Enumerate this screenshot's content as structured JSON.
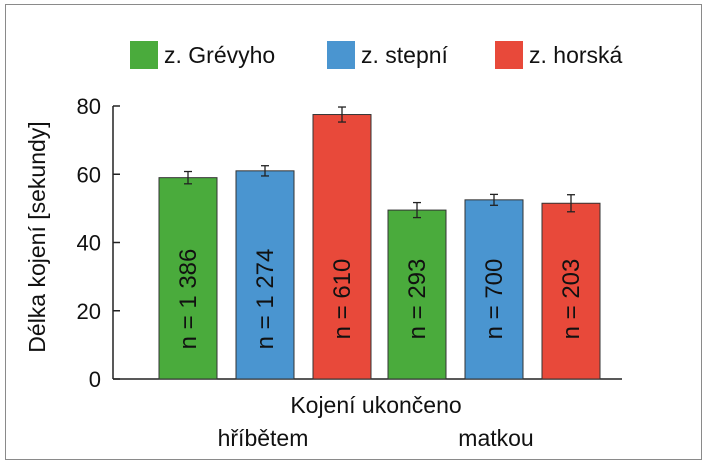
{
  "chart_data": {
    "type": "bar",
    "title": "",
    "ylabel": "Délka kojení [sekundy]",
    "xlabel": "Kojení ukončeno",
    "ylim": [
      0,
      80
    ],
    "yticks": [
      "0",
      "20",
      "40",
      "60",
      "80"
    ],
    "groups": [
      "hříbětem",
      "matkou"
    ],
    "series": [
      {
        "name": "z. Grévyho",
        "color": "#4aab3c",
        "values": [
          59,
          49.5
        ],
        "errors": [
          1.8,
          2.2
        ],
        "n_labels": [
          "n = 1 386",
          "n = 293"
        ]
      },
      {
        "name": "z. stepní",
        "color": "#4a95d0",
        "values": [
          61,
          52.5
        ],
        "errors": [
          1.5,
          1.6
        ],
        "n_labels": [
          "n = 1 274",
          "n = 700"
        ]
      },
      {
        "name": "z. horská",
        "color": "#e8493a",
        "values": [
          77.5,
          51.5
        ],
        "errors": [
          2.2,
          2.5
        ],
        "n_labels": [
          "n = 610",
          "n = 203"
        ]
      }
    ],
    "grid": false,
    "legend": "top"
  }
}
